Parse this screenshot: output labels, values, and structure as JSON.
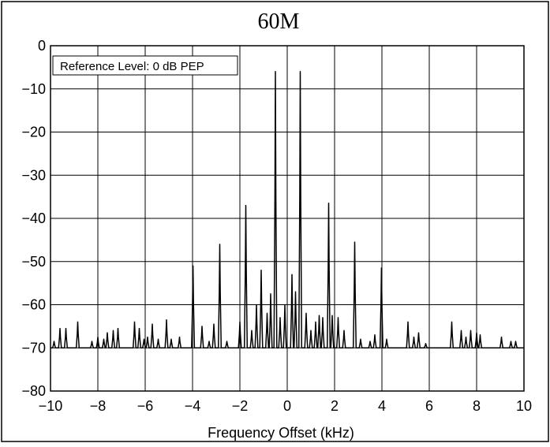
{
  "chart_data": {
    "type": "line",
    "title": "60M",
    "xlabel": "Frequency Offset (kHz)",
    "ylabel": "",
    "xlim": [
      -10,
      10
    ],
    "ylim": [
      -80,
      0
    ],
    "x_ticks": [
      -10,
      -8,
      -6,
      -4,
      -2,
      0,
      2,
      4,
      6,
      8,
      10
    ],
    "x_tick_labels": [
      "−10",
      "−8",
      "−6",
      "−4",
      "−2",
      "0",
      "2",
      "4",
      "6",
      "8",
      "10"
    ],
    "y_ticks": [
      0,
      -10,
      -20,
      -30,
      -40,
      -50,
      -60,
      -70,
      -80
    ],
    "y_tick_labels": [
      "0",
      "−10",
      "−20",
      "−30",
      "−40",
      "−50",
      "−60",
      "−70",
      "−80"
    ],
    "grid": true,
    "annotation": "Reference Level: 0 dB PEP",
    "annotation_position": "top-left",
    "series": [
      {
        "line_color": "#000000",
        "noise_floor": -70,
        "peaks": [
          {
            "x": -9.85,
            "y": -68.5
          },
          {
            "x": -9.6,
            "y": -65.5
          },
          {
            "x": -9.35,
            "y": -65.5
          },
          {
            "x": -8.85,
            "y": -64
          },
          {
            "x": -8.25,
            "y": -68.5
          },
          {
            "x": -8.0,
            "y": -67.5
          },
          {
            "x": -7.75,
            "y": -68
          },
          {
            "x": -7.6,
            "y": -66.5
          },
          {
            "x": -7.35,
            "y": -66
          },
          {
            "x": -7.15,
            "y": -65.5
          },
          {
            "x": -6.45,
            "y": -64
          },
          {
            "x": -6.25,
            "y": -65.5
          },
          {
            "x": -6.05,
            "y": -68
          },
          {
            "x": -5.9,
            "y": -67.5
          },
          {
            "x": -5.7,
            "y": -64.5
          },
          {
            "x": -5.45,
            "y": -68
          },
          {
            "x": -5.1,
            "y": -63.5
          },
          {
            "x": -4.9,
            "y": -68
          },
          {
            "x": -4.55,
            "y": -67.5
          },
          {
            "x": -3.98,
            "y": -51
          },
          {
            "x": -3.6,
            "y": -65
          },
          {
            "x": -3.3,
            "y": -68.5
          },
          {
            "x": -3.1,
            "y": -64.5
          },
          {
            "x": -2.85,
            "y": -46
          },
          {
            "x": -2.55,
            "y": -68.5
          },
          {
            "x": -2.0,
            "y": -64
          },
          {
            "x": -1.75,
            "y": -37
          },
          {
            "x": -1.5,
            "y": -66
          },
          {
            "x": -1.3,
            "y": -60
          },
          {
            "x": -1.1,
            "y": -52
          },
          {
            "x": -0.85,
            "y": -62
          },
          {
            "x": -0.7,
            "y": -57.5
          },
          {
            "x": -0.5,
            "y": -6
          },
          {
            "x": -0.3,
            "y": -63
          },
          {
            "x": -0.1,
            "y": -60
          },
          {
            "x": 0.2,
            "y": -53
          },
          {
            "x": 0.35,
            "y": -57
          },
          {
            "x": 0.55,
            "y": -6
          },
          {
            "x": 0.8,
            "y": -62
          },
          {
            "x": 1.0,
            "y": -66
          },
          {
            "x": 1.2,
            "y": -64
          },
          {
            "x": 1.35,
            "y": -62.5
          },
          {
            "x": 1.5,
            "y": -63
          },
          {
            "x": 1.75,
            "y": -36.5
          },
          {
            "x": 1.9,
            "y": -62.5
          },
          {
            "x": 2.15,
            "y": -63
          },
          {
            "x": 2.4,
            "y": -66
          },
          {
            "x": 2.85,
            "y": -45.5
          },
          {
            "x": 3.1,
            "y": -68
          },
          {
            "x": 3.5,
            "y": -68.5
          },
          {
            "x": 3.7,
            "y": -67
          },
          {
            "x": 3.98,
            "y": -51.5
          },
          {
            "x": 4.2,
            "y": -68
          },
          {
            "x": 5.1,
            "y": -64
          },
          {
            "x": 5.35,
            "y": -67.5
          },
          {
            "x": 5.55,
            "y": -66.5
          },
          {
            "x": 5.85,
            "y": -69
          },
          {
            "x": 6.95,
            "y": -64
          },
          {
            "x": 7.35,
            "y": -66
          },
          {
            "x": 7.55,
            "y": -67.5
          },
          {
            "x": 7.75,
            "y": -66
          },
          {
            "x": 8.0,
            "y": -66.5
          },
          {
            "x": 8.15,
            "y": -67
          },
          {
            "x": 9.05,
            "y": -67.5
          },
          {
            "x": 9.45,
            "y": -68.5
          },
          {
            "x": 9.65,
            "y": -68.5
          }
        ]
      }
    ]
  }
}
